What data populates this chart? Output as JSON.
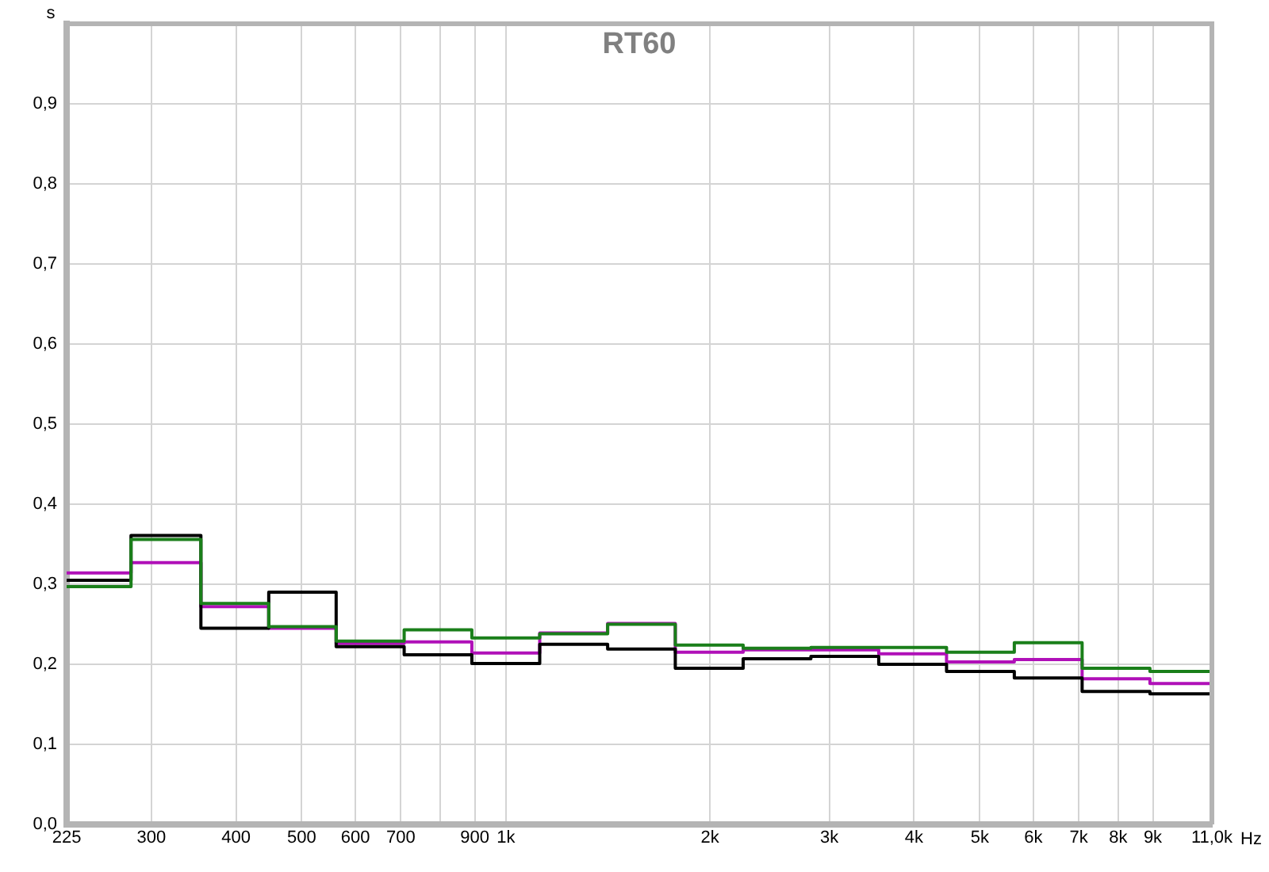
{
  "chart_data": {
    "type": "step",
    "title": "RT60",
    "xlabel": "Hz",
    "ylabel": "s",
    "x": [
      225,
      280,
      355,
      447,
      562,
      708,
      891,
      1122,
      1413,
      1778,
      2239,
      2818,
      3548,
      4467,
      5623,
      7079,
      8913,
      11000
    ],
    "series": [
      {
        "color": "#1a7f1a",
        "values": [
          0.297,
          0.356,
          0.276,
          0.247,
          0.229,
          0.243,
          0.233,
          0.238,
          0.25,
          0.224,
          0.22,
          0.221,
          0.221,
          0.215,
          0.227,
          0.195,
          0.191,
          0.191
        ]
      },
      {
        "color": "#000000",
        "values": [
          0.305,
          0.361,
          0.245,
          0.29,
          0.222,
          0.212,
          0.201,
          0.225,
          0.219,
          0.195,
          0.207,
          0.21,
          0.2,
          0.191,
          0.183,
          0.166,
          0.163,
          0.163
        ]
      },
      {
        "color": "#b010b8",
        "values": [
          0.314,
          0.327,
          0.272,
          0.245,
          0.226,
          0.228,
          0.214,
          0.239,
          0.251,
          0.215,
          0.218,
          0.218,
          0.213,
          0.203,
          0.206,
          0.182,
          0.176,
          0.176
        ]
      }
    ],
    "log": "x",
    "xlim": [
      225,
      11000
    ],
    "xticks": [
      225,
      300,
      400,
      500,
      600,
      700,
      {
        "value": 800,
        "label": null
      },
      900,
      {
        "value": 1000,
        "label": "1k"
      },
      {
        "value": 2000,
        "label": "2k"
      },
      {
        "value": 3000,
        "label": "3k"
      },
      {
        "value": 4000,
        "label": "4k"
      },
      {
        "value": 5000,
        "label": "5k"
      },
      {
        "value": 6000,
        "label": "6k"
      },
      {
        "value": 7000,
        "label": "7k"
      },
      {
        "value": 8000,
        "label": "8k"
      },
      {
        "value": 9000,
        "label": "9k"
      },
      {
        "value": 11000,
        "label": "11,0k"
      }
    ],
    "ylim": [
      0,
      1
    ],
    "yticks": [
      {
        "value": 0,
        "label": "0,0"
      },
      {
        "value": 0.1,
        "label": "0,1"
      },
      {
        "value": 0.2,
        "label": "0,2"
      },
      {
        "value": 0.3,
        "label": "0,3"
      },
      {
        "value": 0.4,
        "label": "0,4"
      },
      {
        "value": 0.5,
        "label": "0,5"
      },
      {
        "value": 0.6,
        "label": "0,6"
      },
      {
        "value": 0.7,
        "label": "0,7"
      },
      {
        "value": 0.8,
        "label": "0,8"
      },
      {
        "value": 0.9,
        "label": "0,9"
      }
    ],
    "grid": true
  }
}
